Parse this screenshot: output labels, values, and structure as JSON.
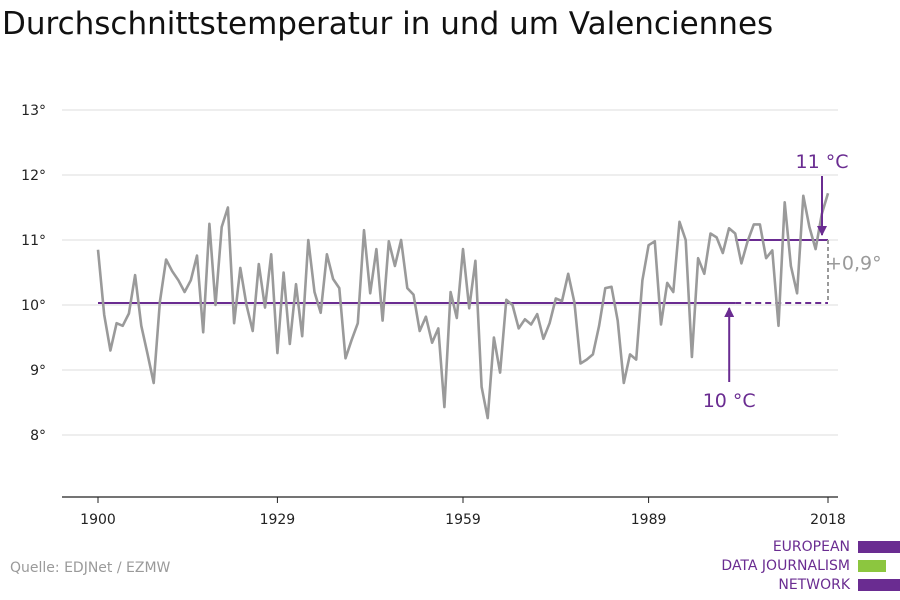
{
  "title": "Durchschnittstemperatur in und um Valenciennes",
  "source": "Quelle: EDJNet / EZMW",
  "logo": {
    "lines": [
      "EUROPEAN",
      "DATA JOURNALISM",
      "NETWORK"
    ],
    "colors": [
      "#6a2c91",
      "#8cc63f",
      "#6a2c91"
    ]
  },
  "colors": {
    "series": "#9a9a9a",
    "accent": "#6a2c91",
    "grid": "#dddddd",
    "axis": "#222222",
    "diff": "#9a9a9a"
  },
  "chart_data": {
    "type": "line",
    "title": "Durchschnittstemperatur in und um Valenciennes",
    "xlabel": "",
    "ylabel": "",
    "xlim": [
      1900,
      2018
    ],
    "ylim": [
      7,
      13
    ],
    "y_ticks": [
      {
        "value": 8,
        "label": "8°"
      },
      {
        "value": 9,
        "label": "9°"
      },
      {
        "value": 10,
        "label": "10°"
      },
      {
        "value": 11,
        "label": "11°"
      },
      {
        "value": 12,
        "label": "12°"
      },
      {
        "value": 13,
        "label": "13°"
      }
    ],
    "x_ticks": [
      {
        "value": 1900,
        "label": "1900"
      },
      {
        "value": 1929,
        "label": "1929"
      },
      {
        "value": 1959,
        "label": "1959"
      },
      {
        "value": 1989,
        "label": "1989"
      },
      {
        "value": 2018,
        "label": "2018"
      }
    ],
    "grid": true,
    "series": [
      {
        "years_start": 1900,
        "values": [
          10.85,
          9.85,
          9.3,
          9.72,
          9.68,
          9.87,
          10.46,
          9.68,
          9.25,
          8.8,
          10.05,
          10.7,
          10.52,
          10.38,
          10.2,
          10.38,
          10.76,
          9.58,
          11.25,
          10.0,
          11.2,
          11.5,
          9.72,
          10.57,
          10.0,
          9.6,
          10.63,
          9.96,
          10.78,
          9.26,
          10.5,
          9.4,
          10.32,
          9.52,
          11.0,
          10.2,
          9.88,
          10.78,
          10.4,
          10.26,
          9.18,
          9.46,
          9.72,
          11.15,
          10.18,
          10.86,
          9.76,
          10.98,
          10.6,
          11.0,
          10.26,
          10.16,
          9.6,
          9.82,
          9.42,
          9.64,
          8.43,
          10.2,
          9.8,
          10.86,
          9.95,
          10.68,
          8.74,
          8.26,
          9.5,
          8.96,
          10.08,
          10.0,
          9.64,
          9.78,
          9.7,
          9.86,
          9.48,
          9.72,
          10.1,
          10.06,
          10.48,
          10.04,
          9.1,
          9.16,
          9.24,
          9.68,
          10.26,
          10.28,
          9.76,
          8.8,
          9.24,
          9.16,
          10.38,
          10.92,
          10.98,
          9.7,
          10.34,
          10.2,
          11.28,
          11.0,
          9.2,
          10.72,
          10.48,
          11.1,
          11.04,
          10.8,
          11.18,
          11.1,
          10.64,
          10.98,
          11.24,
          11.24,
          10.72,
          10.84,
          9.68,
          11.58,
          10.6,
          10.18,
          11.68,
          11.2,
          10.86,
          11.4,
          11.72
        ]
      }
    ],
    "reference_lines": [
      {
        "value": 10.03,
        "label": "10 °C",
        "solid_to": 2003
      },
      {
        "value": 11.0,
        "label": "11 °C",
        "solid_from": 2003
      }
    ],
    "annotation": {
      "label": "+0,9°",
      "from": 10.03,
      "to": 11.0
    }
  }
}
